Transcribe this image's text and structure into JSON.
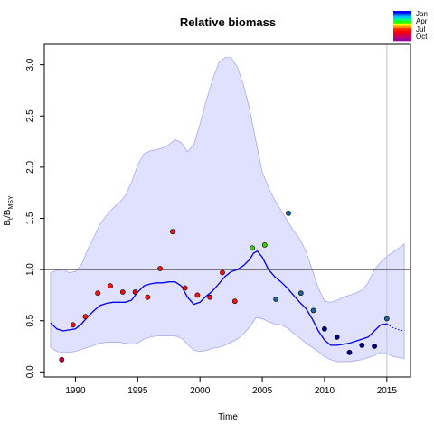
{
  "chart_data": {
    "type": "line",
    "title": "Relative biomass",
    "xlabel": "Time",
    "ylabel": "B",
    "ylabel_sub": "t",
    "ylabel_div": "/B",
    "ylabel_sub2": "MSY",
    "xlim": [
      1987.5,
      2016.9
    ],
    "ylim": [
      -0.05,
      3.2
    ],
    "x_ticks": [
      1990,
      1995,
      2000,
      2005,
      2010,
      2015
    ],
    "x_tick_labels": [
      "1990",
      "1995",
      "2000",
      "2005",
      "2010",
      "2015"
    ],
    "y_ticks": [
      0.0,
      0.5,
      1.0,
      1.5,
      2.0,
      2.5,
      3.0
    ],
    "y_tick_labels": [
      "0.0",
      "0.5",
      "1.0",
      "1.5",
      "2.0",
      "2.5",
      "3.0"
    ],
    "reference_line_y": 1.0,
    "vertical_line_x": 2015.0,
    "forecast_start_x": 2015.0,
    "colors": {
      "band_fill": "#ccccff",
      "band_edge": "#a0a0ee",
      "median_line": "#0000ee",
      "reference_line": "#555555",
      "vertical_line": "#cccccc"
    },
    "legend": {
      "placement": "top-right",
      "labels": [
        "Jan",
        "Apr",
        "Jul",
        "Oct"
      ],
      "colors": [
        "#0000ff",
        "#0060ff",
        "#00c0ff",
        "#00ff80",
        "#20ff00",
        "#ffff00",
        "#ff9000",
        "#ff2000",
        "#ff0000",
        "#dd0033",
        "#cc0066",
        "#990099"
      ]
    },
    "median": {
      "x": [
        1988.0,
        1988.5,
        1989.0,
        1989.5,
        1990.0,
        1990.5,
        1991.0,
        1991.5,
        1992.0,
        1992.5,
        1993.0,
        1993.5,
        1994.0,
        1994.5,
        1995.0,
        1995.5,
        1996.0,
        1996.5,
        1997.0,
        1997.5,
        1998.0,
        1998.5,
        1999.0,
        1999.5,
        2000.0,
        2000.5,
        2001.0,
        2001.5,
        2002.0,
        2002.5,
        2003.0,
        2003.5,
        2004.0,
        2004.3,
        2004.6,
        2005.0,
        2005.5,
        2006.0,
        2006.5,
        2007.0,
        2007.5,
        2008.0,
        2008.5,
        2009.0,
        2009.5,
        2010.0,
        2010.5,
        2011.0,
        2011.5,
        2012.0,
        2012.5,
        2013.0,
        2013.5,
        2014.0,
        2014.5,
        2015.0
      ],
      "y": [
        0.48,
        0.42,
        0.4,
        0.41,
        0.42,
        0.47,
        0.54,
        0.6,
        0.65,
        0.67,
        0.68,
        0.68,
        0.68,
        0.7,
        0.78,
        0.84,
        0.86,
        0.87,
        0.87,
        0.88,
        0.88,
        0.84,
        0.73,
        0.66,
        0.68,
        0.74,
        0.79,
        0.86,
        0.93,
        0.98,
        1.0,
        1.04,
        1.1,
        1.16,
        1.18,
        1.12,
        1.0,
        0.93,
        0.88,
        0.82,
        0.75,
        0.68,
        0.62,
        0.52,
        0.4,
        0.31,
        0.26,
        0.26,
        0.27,
        0.28,
        0.3,
        0.32,
        0.34,
        0.4,
        0.46,
        0.47
      ]
    },
    "forecast": {
      "x": [
        2015.0,
        2015.5,
        2016.0,
        2016.4
      ],
      "y": [
        0.47,
        0.43,
        0.41,
        0.4
      ]
    },
    "band": {
      "x": [
        1988.0,
        1988.5,
        1989.0,
        1989.5,
        1990.0,
        1990.5,
        1991.0,
        1991.5,
        1992.0,
        1992.5,
        1993.0,
        1993.5,
        1994.0,
        1994.5,
        1995.0,
        1995.5,
        1996.0,
        1996.5,
        1997.0,
        1997.5,
        1998.0,
        1998.5,
        1999.0,
        1999.5,
        2000.0,
        2000.5,
        2001.0,
        2001.5,
        2002.0,
        2002.5,
        2003.0,
        2003.5,
        2004.0,
        2004.5,
        2005.0,
        2005.5,
        2006.0,
        2006.5,
        2007.0,
        2007.5,
        2008.0,
        2008.5,
        2009.0,
        2009.5,
        2010.0,
        2010.5,
        2011.0,
        2011.5,
        2012.0,
        2012.5,
        2013.0,
        2013.5,
        2014.0,
        2014.5,
        2015.0,
        2015.5,
        2016.0,
        2016.4
      ],
      "upper": [
        0.97,
        0.99,
        1.0,
        0.97,
        0.98,
        1.05,
        1.2,
        1.32,
        1.45,
        1.53,
        1.6,
        1.65,
        1.72,
        1.85,
        2.02,
        2.13,
        2.16,
        2.17,
        2.19,
        2.22,
        2.27,
        2.24,
        2.15,
        2.22,
        2.42,
        2.65,
        2.85,
        3.02,
        3.07,
        3.07,
        2.98,
        2.8,
        2.56,
        2.25,
        1.95,
        1.8,
        1.68,
        1.58,
        1.48,
        1.38,
        1.3,
        1.18,
        1.0,
        0.82,
        0.69,
        0.68,
        0.7,
        0.73,
        0.75,
        0.77,
        0.8,
        0.87,
        1.0,
        1.07,
        1.13,
        1.17,
        1.21,
        1.25
      ],
      "lower": [
        0.24,
        0.2,
        0.19,
        0.19,
        0.2,
        0.22,
        0.24,
        0.26,
        0.28,
        0.29,
        0.29,
        0.29,
        0.28,
        0.27,
        0.28,
        0.32,
        0.34,
        0.35,
        0.35,
        0.35,
        0.35,
        0.33,
        0.27,
        0.21,
        0.2,
        0.21,
        0.23,
        0.24,
        0.26,
        0.29,
        0.32,
        0.37,
        0.44,
        0.53,
        0.52,
        0.49,
        0.47,
        0.46,
        0.43,
        0.38,
        0.33,
        0.28,
        0.24,
        0.2,
        0.15,
        0.12,
        0.1,
        0.1,
        0.1,
        0.11,
        0.12,
        0.14,
        0.16,
        0.19,
        0.18,
        0.15,
        0.14,
        0.13
      ]
    },
    "points": [
      {
        "x": 1988.9,
        "y": 0.12,
        "color": "#cc0033"
      },
      {
        "x": 1989.8,
        "y": 0.46,
        "color": "#ff1010"
      },
      {
        "x": 1990.8,
        "y": 0.54,
        "color": "#ff1010"
      },
      {
        "x": 1991.8,
        "y": 0.77,
        "color": "#ff1010"
      },
      {
        "x": 1992.8,
        "y": 0.84,
        "color": "#ff1010"
      },
      {
        "x": 1993.8,
        "y": 0.78,
        "color": "#ee1010"
      },
      {
        "x": 1994.8,
        "y": 0.78,
        "color": "#dd0022"
      },
      {
        "x": 1995.8,
        "y": 0.73,
        "color": "#ff1010"
      },
      {
        "x": 1996.8,
        "y": 1.01,
        "color": "#ff1010"
      },
      {
        "x": 1997.8,
        "y": 1.37,
        "color": "#ff1010"
      },
      {
        "x": 1998.8,
        "y": 0.82,
        "color": "#ff1010"
      },
      {
        "x": 1999.8,
        "y": 0.75,
        "color": "#ff1010"
      },
      {
        "x": 2000.8,
        "y": 0.73,
        "color": "#ff1010"
      },
      {
        "x": 2001.8,
        "y": 0.97,
        "color": "#ff1010"
      },
      {
        "x": 2002.8,
        "y": 0.69,
        "color": "#ff1010"
      },
      {
        "x": 2004.2,
        "y": 1.21,
        "color": "#44cc00"
      },
      {
        "x": 2005.2,
        "y": 1.24,
        "color": "#44cc00"
      },
      {
        "x": 2006.1,
        "y": 0.71,
        "color": "#1a6699"
      },
      {
        "x": 2007.1,
        "y": 1.55,
        "color": "#1a6699"
      },
      {
        "x": 2008.1,
        "y": 0.77,
        "color": "#1a6699"
      },
      {
        "x": 2009.1,
        "y": 0.6,
        "color": "#1a6699"
      },
      {
        "x": 2010.0,
        "y": 0.42,
        "color": "#00008b"
      },
      {
        "x": 2011.0,
        "y": 0.34,
        "color": "#00008b"
      },
      {
        "x": 2012.0,
        "y": 0.19,
        "color": "#00008b"
      },
      {
        "x": 2013.0,
        "y": 0.26,
        "color": "#00008b"
      },
      {
        "x": 2014.0,
        "y": 0.25,
        "color": "#00008b"
      },
      {
        "x": 2015.0,
        "y": 0.52,
        "color": "#1a6699"
      }
    ]
  }
}
